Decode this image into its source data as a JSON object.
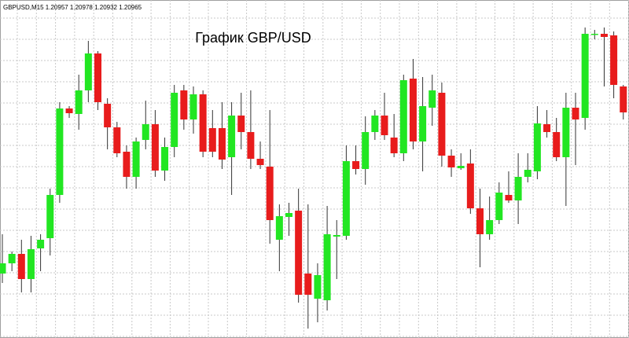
{
  "chart_data": {
    "type": "candlestick",
    "header": "GBPUSD,M15  1.20957 1.20978 1.20932 1.20965",
    "title": "График GBP/USD",
    "up_color": "#22e622",
    "down_color": "#e81c1c",
    "wick_color": "#333333",
    "grid": true,
    "ylim": [
      0,
      430
    ],
    "open": [
      82,
      95,
      107,
      75,
      114,
      127,
      182,
      292,
      285,
      315,
      362,
      298,
      268,
      237,
      205,
      252,
      272,
      213,
      243,
      315,
      278,
      310,
      267,
      267,
      230,
      283,
      262,
      228,
      218,
      125,
      154,
      162,
      82,
      50,
      48,
      129,
      130,
      225,
      215,
      262,
      283,
      255,
      235,
      330,
      250,
      293,
      312,
      232,
      216,
      222,
      165,
      132,
      150,
      182,
      175,
      205,
      212,
      272,
      262,
      230,
      293,
      280,
      386,
      387,
      385,
      320
    ],
    "close": [
      95,
      107,
      75,
      113,
      125,
      182,
      292,
      286,
      315,
      362,
      300,
      268,
      235,
      205,
      250,
      272,
      213,
      243,
      312,
      278,
      310,
      237,
      237,
      227,
      283,
      262,
      228,
      220,
      150,
      155,
      159,
      55,
      55,
      80,
      132,
      131,
      225,
      215,
      262,
      283,
      258,
      235,
      328,
      250,
      295,
      315,
      232,
      217,
      219,
      165,
      132,
      150,
      185,
      175,
      205,
      214,
      273,
      262,
      230,
      293,
      278,
      387,
      387,
      383,
      322,
      287
    ],
    "high": [
      132,
      110,
      125,
      130,
      132,
      190,
      300,
      295,
      335,
      378,
      365,
      305,
      275,
      245,
      255,
      302,
      290,
      255,
      322,
      322,
      320,
      315,
      290,
      300,
      300,
      312,
      315,
      250,
      290,
      170,
      172,
      190,
      170,
      95,
      168,
      150,
      245,
      245,
      282,
      290,
      312,
      285,
      335,
      355,
      332,
      335,
      325,
      240,
      235,
      240,
      190,
      180,
      198,
      212,
      235,
      235,
      295,
      290,
      280,
      312,
      312,
      395,
      392,
      395,
      390,
      322
    ],
    "low": [
      70,
      85,
      58,
      58,
      85,
      105,
      172,
      280,
      265,
      300,
      290,
      240,
      230,
      190,
      190,
      240,
      205,
      200,
      230,
      265,
      260,
      230,
      230,
      215,
      182,
      240,
      215,
      215,
      120,
      85,
      130,
      45,
      12,
      20,
      35,
      75,
      125,
      208,
      195,
      252,
      252,
      230,
      225,
      240,
      212,
      270,
      218,
      205,
      214,
      158,
      90,
      125,
      145,
      172,
      145,
      198,
      202,
      255,
      225,
      168,
      220,
      265,
      380,
      320,
      305,
      278
    ]
  }
}
